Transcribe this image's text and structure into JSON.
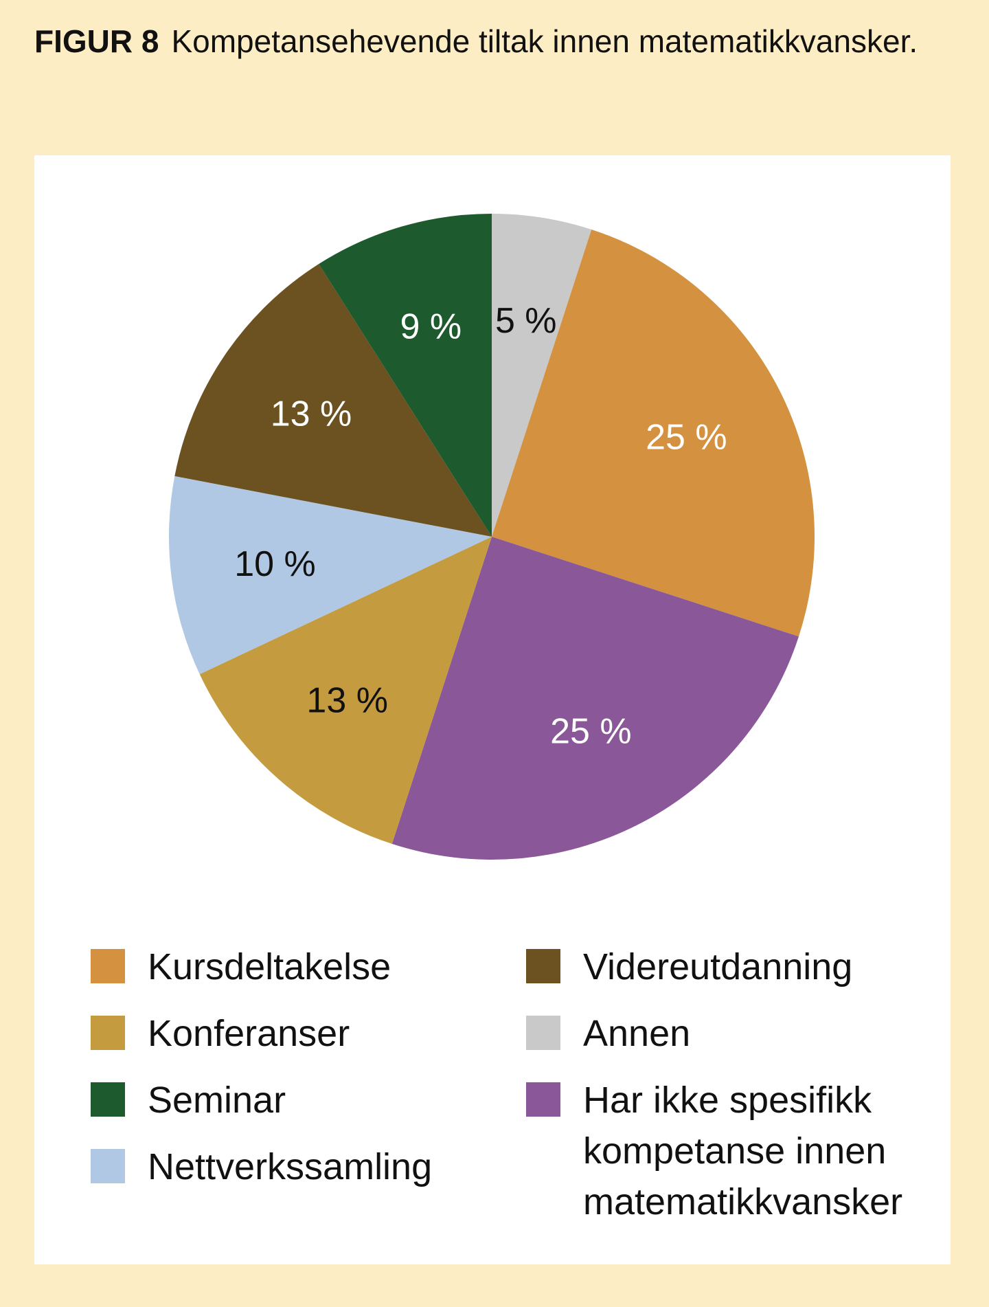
{
  "figure": {
    "label": "FIGUR 8",
    "title": "Kompetansehevende tiltak innen matematikkvansker."
  },
  "chart_data": {
    "type": "pie",
    "title": "Kompetansehevende tiltak innen matematikkvansker.",
    "unit": "%",
    "start_angle_deg": 0,
    "direction": "clockwise",
    "slices": [
      {
        "name": "Annen",
        "value": 5,
        "label": "5 %",
        "color": "#c9c9c9",
        "label_color": "#111111"
      },
      {
        "name": "Kursdeltakelse",
        "value": 25,
        "label": "25 %",
        "color": "#d49140",
        "label_color": "#ffffff"
      },
      {
        "name": "Har ikke spesifikk kompetanse innen matematikkvansker",
        "value": 25,
        "label": "25 %",
        "color": "#8a5898",
        "label_color": "#ffffff"
      },
      {
        "name": "Konferanser",
        "value": 13,
        "label": "13 %",
        "color": "#c49c3f",
        "label_color": "#111111"
      },
      {
        "name": "Nettverkssamling",
        "value": 10,
        "label": "10 %",
        "color": "#b1c8e4",
        "label_color": "#111111"
      },
      {
        "name": "Videreutdanning",
        "value": 13,
        "label": "13 %",
        "color": "#6c5220",
        "label_color": "#ffffff"
      },
      {
        "name": "Seminar",
        "value": 9,
        "label": "9 %",
        "color": "#1d5a2e",
        "label_color": "#ffffff"
      }
    ],
    "legend": {
      "left": [
        "Kursdeltakelse",
        "Konferanser",
        "Seminar",
        "Nettverkssamling"
      ],
      "right": [
        "Videreutdanning",
        "Annen",
        "Har ikke spesifikk kompetanse innen matematikkvansker"
      ]
    }
  }
}
